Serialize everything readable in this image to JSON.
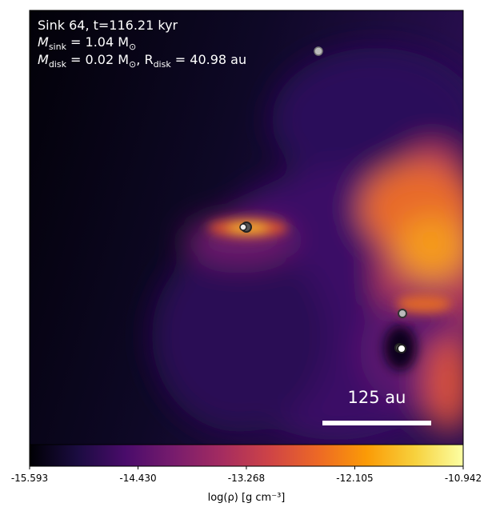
{
  "chart_data": {
    "type": "density-map",
    "annotation": {
      "sink": "Sink 64, t=116.21 kyr",
      "mass_sink": [
        "M",
        "sink",
        " = 1.04 M",
        "⊙"
      ],
      "disk": [
        "M",
        "disk",
        " = 0.02 M",
        "⊙",
        ", R",
        "disk",
        " = 40.98 au"
      ]
    },
    "scale_bar": "125 au",
    "colorbar": {
      "label": "log(ρ) [g cm⁻³]",
      "lim": [
        -15.593,
        -10.942
      ],
      "ticks": [
        -15.593,
        {
          "value": -14.43,
          "label": "-14.430"
        },
        -13.268,
        -12.105,
        -10.942
      ],
      "colors": [
        "#000004",
        "#1b0c41",
        "#4a0c6b",
        "#781c6d",
        "#a52c60",
        "#cf4446",
        "#ed6925",
        "#fb9b06",
        "#f7d13d",
        "#fcffa4"
      ]
    }
  }
}
